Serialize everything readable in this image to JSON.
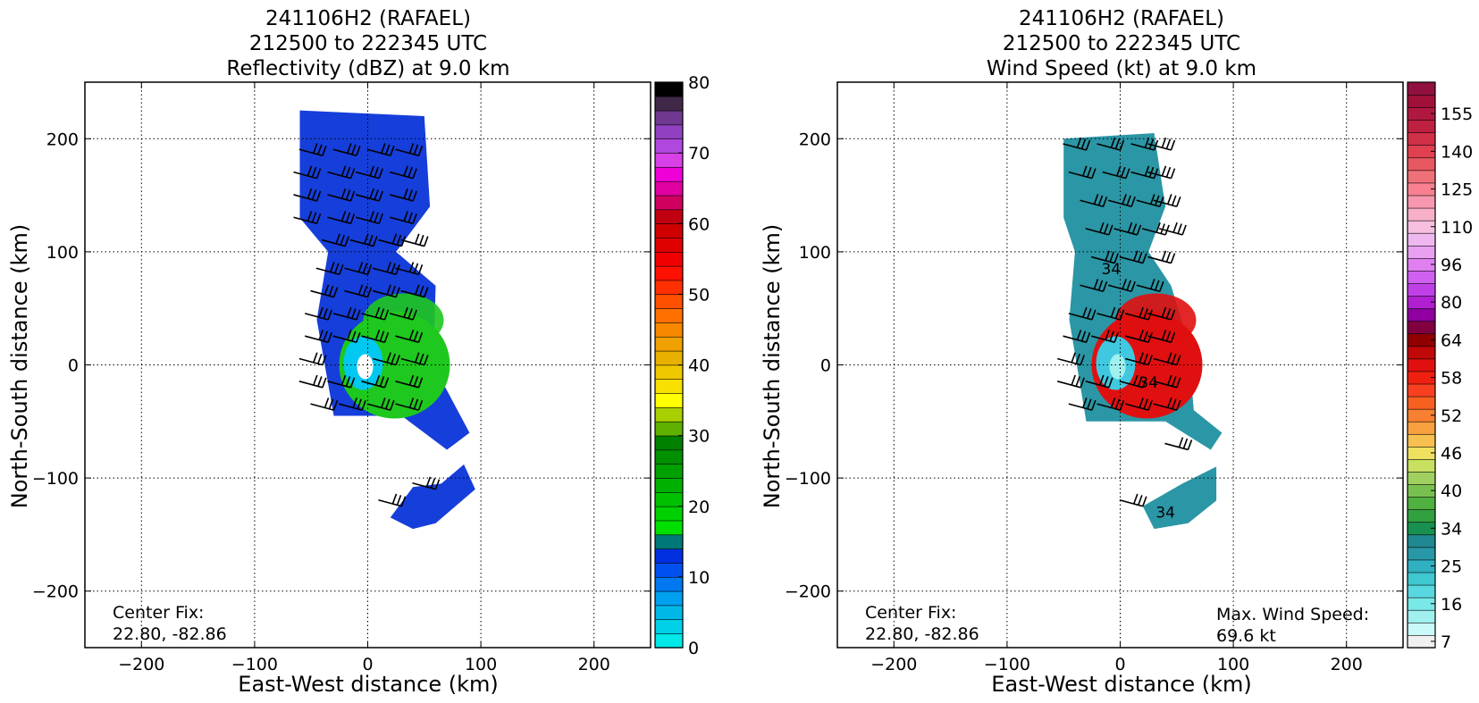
{
  "panels": [
    {
      "title_lines": [
        "241106H2 (RAFAEL)",
        "212500 to 222345 UTC",
        "Reflectivity (dBZ) at 9.0 km"
      ],
      "xlabel": "East-West distance (km)",
      "ylabel": "North-South distance (km)",
      "center_fix_lines": [
        "Center Fix:",
        "22.80, -82.86"
      ],
      "max_wind_lines": []
    },
    {
      "title_lines": [
        "241106H2 (RAFAEL)",
        "212500 to 222345 UTC",
        "Wind Speed (kt) at 9.0 km"
      ],
      "xlabel": "East-West distance (km)",
      "ylabel": "North-South distance (km)",
      "center_fix_lines": [
        "Center Fix:",
        "22.80, -82.86"
      ],
      "max_wind_lines": [
        "Max. Wind Speed:",
        "69.6 kt"
      ]
    }
  ],
  "chart_data": [
    {
      "type": "heatmap",
      "variable": "Reflectivity (dBZ) at 9.0 km",
      "xlim": [
        -250,
        250
      ],
      "ylim": [
        -250,
        250
      ],
      "xticks": [
        -200,
        -100,
        0,
        100,
        200
      ],
      "yticks": [
        -200,
        -100,
        0,
        100,
        200
      ],
      "grid": true,
      "grid_style": "dotted",
      "colorbar": {
        "min": 0,
        "max": 80,
        "tick_labels": [
          "0",
          "10",
          "20",
          "30",
          "40",
          "50",
          "60",
          "70",
          "80"
        ],
        "colors": [
          "#00e8e8",
          "#00d0e8",
          "#00b8e8",
          "#00a0f0",
          "#0078f0",
          "#0050f0",
          "#0030e0",
          "#007878",
          "#00e000",
          "#00d000",
          "#00c000",
          "#00b000",
          "#00a000",
          "#009000",
          "#008000",
          "#60b000",
          "#a8d000",
          "#ffff00",
          "#f8e000",
          "#f0c800",
          "#e8b000",
          "#f0a000",
          "#f88800",
          "#ff7000",
          "#ff5000",
          "#ff3000",
          "#ff1000",
          "#f00000",
          "#e00000",
          "#d00000",
          "#c00010",
          "#d00060",
          "#e000a0",
          "#f000d8",
          "#d840e8",
          "#b048e0",
          "#9040c0",
          "#703890",
          "#402848",
          "#000000"
        ]
      },
      "features": [
        {
          "name": "mainband",
          "values": [
            {
              "x": -60,
              "y": 225
            },
            {
              "x": 50,
              "y": 220
            },
            {
              "x": 55,
              "y": 140
            },
            {
              "x": 25,
              "y": 100
            },
            {
              "x": 60,
              "y": 70
            },
            {
              "x": 58,
              "y": 0
            },
            {
              "x": 90,
              "y": -60
            },
            {
              "x": 70,
              "y": -75
            },
            {
              "x": 30,
              "y": -45
            },
            {
              "x": -30,
              "y": -45
            },
            {
              "x": -45,
              "y": 40
            },
            {
              "x": -35,
              "y": 100
            },
            {
              "x": -60,
              "y": 130
            }
          ]
        },
        {
          "name": "southband",
          "values": [
            {
              "x": 85,
              "y": -88
            },
            {
              "x": 95,
              "y": -110
            },
            {
              "x": 60,
              "y": -140
            },
            {
              "x": 40,
              "y": -145
            },
            {
              "x": 20,
              "y": -135
            },
            {
              "x": 40,
              "y": -108
            },
            {
              "x": 65,
              "y": -105
            }
          ]
        }
      ],
      "barb_rows": [
        {
          "y": 185,
          "x": [
            -40,
            -10,
            20,
            45
          ]
        },
        {
          "y": 165,
          "x": [
            -45,
            -15,
            10,
            40
          ]
        },
        {
          "y": 145,
          "x": [
            -45,
            -15,
            10,
            40
          ]
        },
        {
          "y": 125,
          "x": [
            -45,
            -15,
            10,
            40
          ]
        },
        {
          "y": 105,
          "x": [
            -20,
            5,
            30,
            50
          ]
        },
        {
          "y": 80,
          "x": [
            -25,
            0,
            25,
            45
          ]
        },
        {
          "y": 60,
          "x": [
            -30,
            0,
            25,
            50
          ]
        },
        {
          "y": 40,
          "x": [
            -35,
            -10,
            15,
            40
          ]
        },
        {
          "y": 20,
          "x": [
            -35,
            -10,
            15,
            45
          ]
        },
        {
          "y": 0,
          "x": [
            -40,
            25,
            50
          ]
        },
        {
          "y": -20,
          "x": [
            -40,
            -15,
            15,
            45
          ]
        },
        {
          "y": -40,
          "x": [
            -30,
            -5,
            20,
            45
          ]
        },
        {
          "y": -110,
          "x": [
            60
          ]
        },
        {
          "y": -125,
          "x": [
            30
          ]
        }
      ]
    },
    {
      "type": "heatmap",
      "variable": "Wind Speed (kt) at 9.0 km",
      "xlim": [
        -250,
        250
      ],
      "ylim": [
        -250,
        250
      ],
      "xticks": [
        -200,
        -100,
        0,
        100,
        200
      ],
      "yticks": [
        -200,
        -100,
        0,
        100,
        200
      ],
      "grid": true,
      "grid_style": "dotted",
      "max_wind_speed_kt": 69.6,
      "contour_labels": [
        "34",
        "34",
        "34"
      ],
      "colorbar": {
        "tick_labels": [
          "7",
          "16",
          "25",
          "34",
          "40",
          "46",
          "52",
          "58",
          "64",
          "80",
          "96",
          "110",
          "125",
          "140",
          "155"
        ],
        "colors": [
          "#f0f0f0",
          "#c8f8f8",
          "#a0f0f0",
          "#78e8e8",
          "#58d8e0",
          "#40c8d0",
          "#30b0c0",
          "#2898a8",
          "#208890",
          "#189050",
          "#30a040",
          "#50b040",
          "#78c050",
          "#a0d060",
          "#c8e060",
          "#f0e060",
          "#f8c050",
          "#f8a040",
          "#f88030",
          "#f86020",
          "#f84020",
          "#f02010",
          "#e01010",
          "#c00808",
          "#900000",
          "#800040",
          "#9000a0",
          "#b020d0",
          "#c040e8",
          "#d060f0",
          "#e080f0",
          "#e8a0f0",
          "#f0b8f0",
          "#f8c0e0",
          "#f8b0c8",
          "#f898b0",
          "#f88090",
          "#f07078",
          "#e85860",
          "#e04050",
          "#d03048",
          "#c02040",
          "#b01840",
          "#a01038",
          "#901040"
        ]
      },
      "features": [
        {
          "name": "outerband",
          "values": [
            {
              "x": -50,
              "y": 200
            },
            {
              "x": 30,
              "y": 205
            },
            {
              "x": 40,
              "y": 140
            },
            {
              "x": 25,
              "y": 100
            },
            {
              "x": 45,
              "y": 70
            },
            {
              "x": 60,
              "y": 20
            },
            {
              "x": 65,
              "y": -40
            },
            {
              "x": 90,
              "y": -60
            },
            {
              "x": 80,
              "y": -75
            },
            {
              "x": 40,
              "y": -50
            },
            {
              "x": -30,
              "y": -50
            },
            {
              "x": -45,
              "y": 40
            },
            {
              "x": -40,
              "y": 100
            },
            {
              "x": -50,
              "y": 130
            }
          ]
        },
        {
          "name": "southband",
          "values": [
            {
              "x": 85,
              "y": -90
            },
            {
              "x": 85,
              "y": -120
            },
            {
              "x": 60,
              "y": -140
            },
            {
              "x": 30,
              "y": -145
            },
            {
              "x": 20,
              "y": -125
            },
            {
              "x": 55,
              "y": -105
            }
          ]
        }
      ],
      "barb_rows": [
        {
          "y": 190,
          "x": [
            -30,
            0,
            30,
            45
          ]
        },
        {
          "y": 165,
          "x": [
            -25,
            5,
            30,
            45
          ]
        },
        {
          "y": 140,
          "x": [
            -15,
            10,
            35,
            50
          ]
        },
        {
          "y": 115,
          "x": [
            -10,
            15,
            40,
            55
          ]
        },
        {
          "y": 90,
          "x": [
            -5,
            20,
            45
          ]
        },
        {
          "y": 65,
          "x": [
            -15,
            10,
            35
          ]
        },
        {
          "y": 40,
          "x": [
            -25,
            0,
            25,
            45
          ]
        },
        {
          "y": 20,
          "x": [
            -30,
            -5,
            25,
            45
          ]
        },
        {
          "y": 0,
          "x": [
            -35,
            25,
            50
          ]
        },
        {
          "y": -20,
          "x": [
            -35,
            -10,
            20,
            50
          ]
        },
        {
          "y": -40,
          "x": [
            -25,
            0,
            25,
            50
          ]
        },
        {
          "y": -75,
          "x": [
            60
          ]
        },
        {
          "y": -125,
          "x": [
            20
          ]
        }
      ]
    }
  ]
}
